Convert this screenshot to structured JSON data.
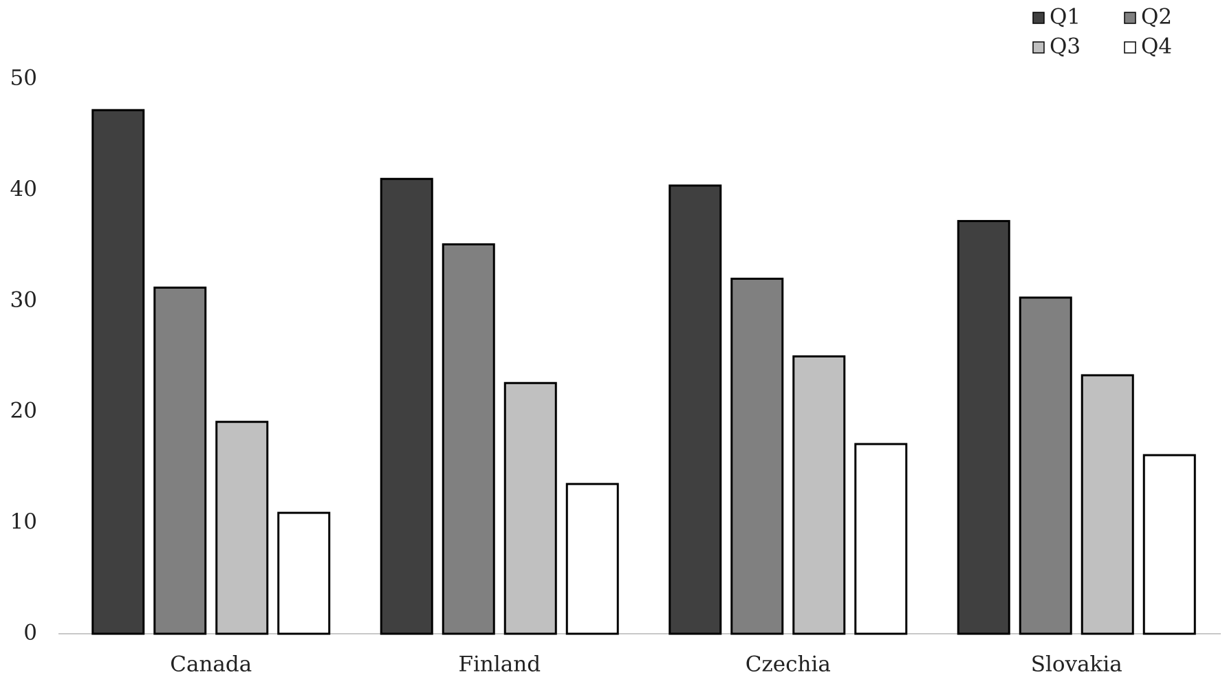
{
  "chart_data": {
    "type": "bar",
    "categories": [
      "Canada",
      "Finland",
      "Czechia",
      "Slovakia"
    ],
    "series": [
      {
        "name": "Q1",
        "color": "#404040",
        "values": [
          47.2,
          41.0,
          40.4,
          37.2
        ]
      },
      {
        "name": "Q2",
        "color": "#808080",
        "values": [
          31.2,
          35.1,
          32.0,
          30.3
        ]
      },
      {
        "name": "Q3",
        "color": "#c0c0c0",
        "values": [
          19.1,
          22.6,
          25.0,
          23.3
        ]
      },
      {
        "name": "Q4",
        "color": "#ffffff",
        "values": [
          10.9,
          13.5,
          17.1,
          16.1
        ]
      }
    ],
    "ylim": [
      0,
      50
    ],
    "yticks": [
      0,
      10,
      20,
      30,
      40,
      50
    ],
    "grid": false,
    "legend": "top-right"
  }
}
